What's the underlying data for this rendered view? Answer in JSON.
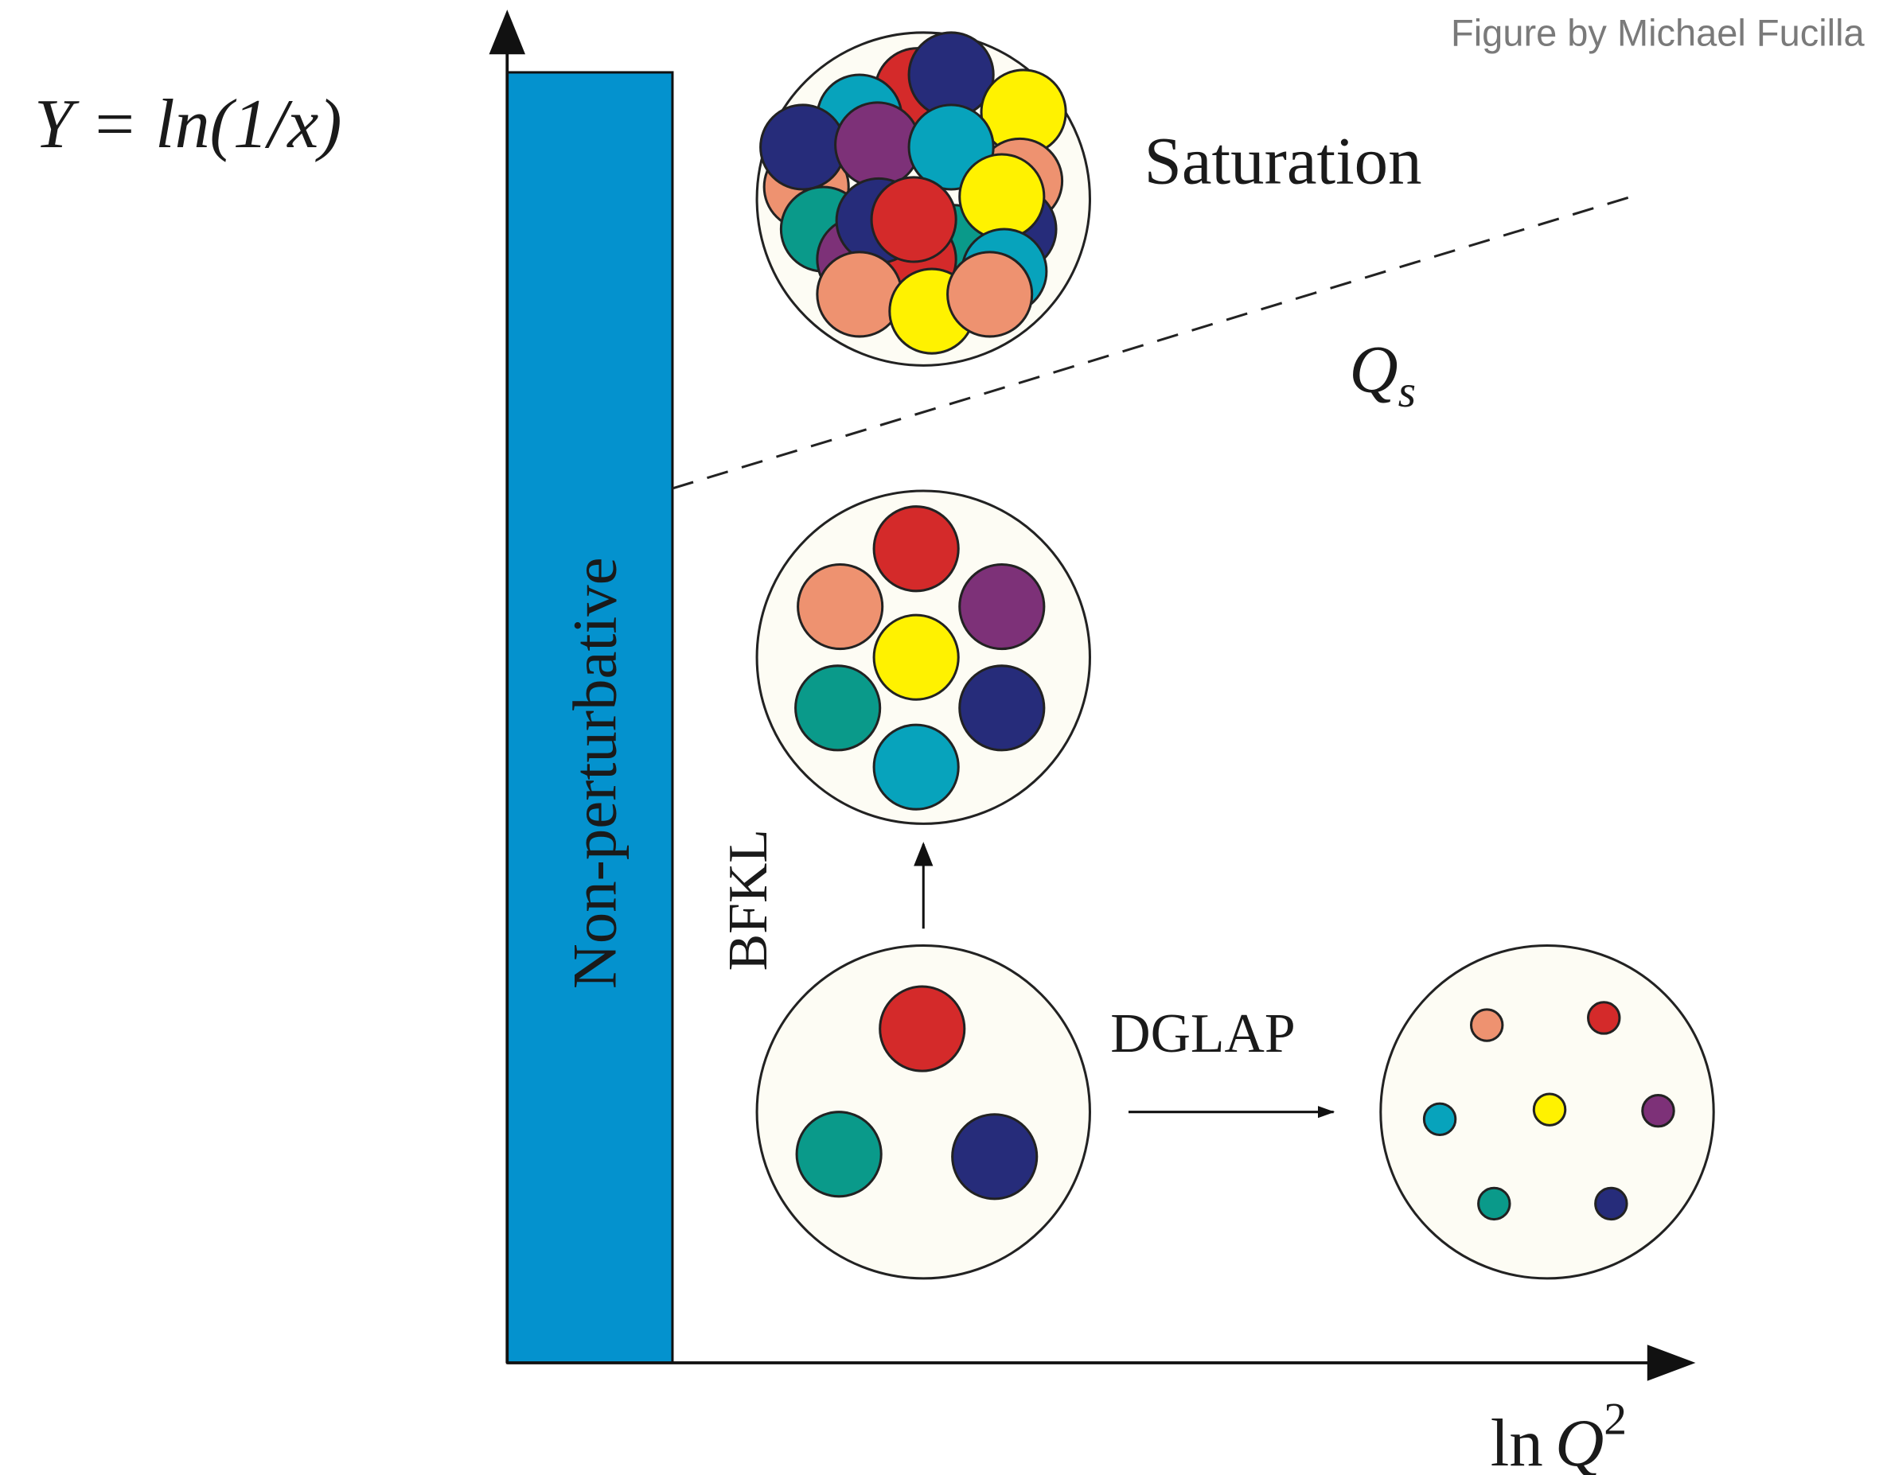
{
  "credit": "Figure by Michael Fucilla",
  "y_axis_label": "Y = ln(1/x)",
  "saturation_label": "Saturation",
  "saturation_scale": {
    "base": "Q",
    "sub": "s"
  },
  "region_label": "Non-perturbative",
  "bfkl_label": "BFKL",
  "dglap_label": "DGLAP",
  "x_axis_label": {
    "prefix": "ln",
    "base": "Q",
    "sup": "2"
  }
}
